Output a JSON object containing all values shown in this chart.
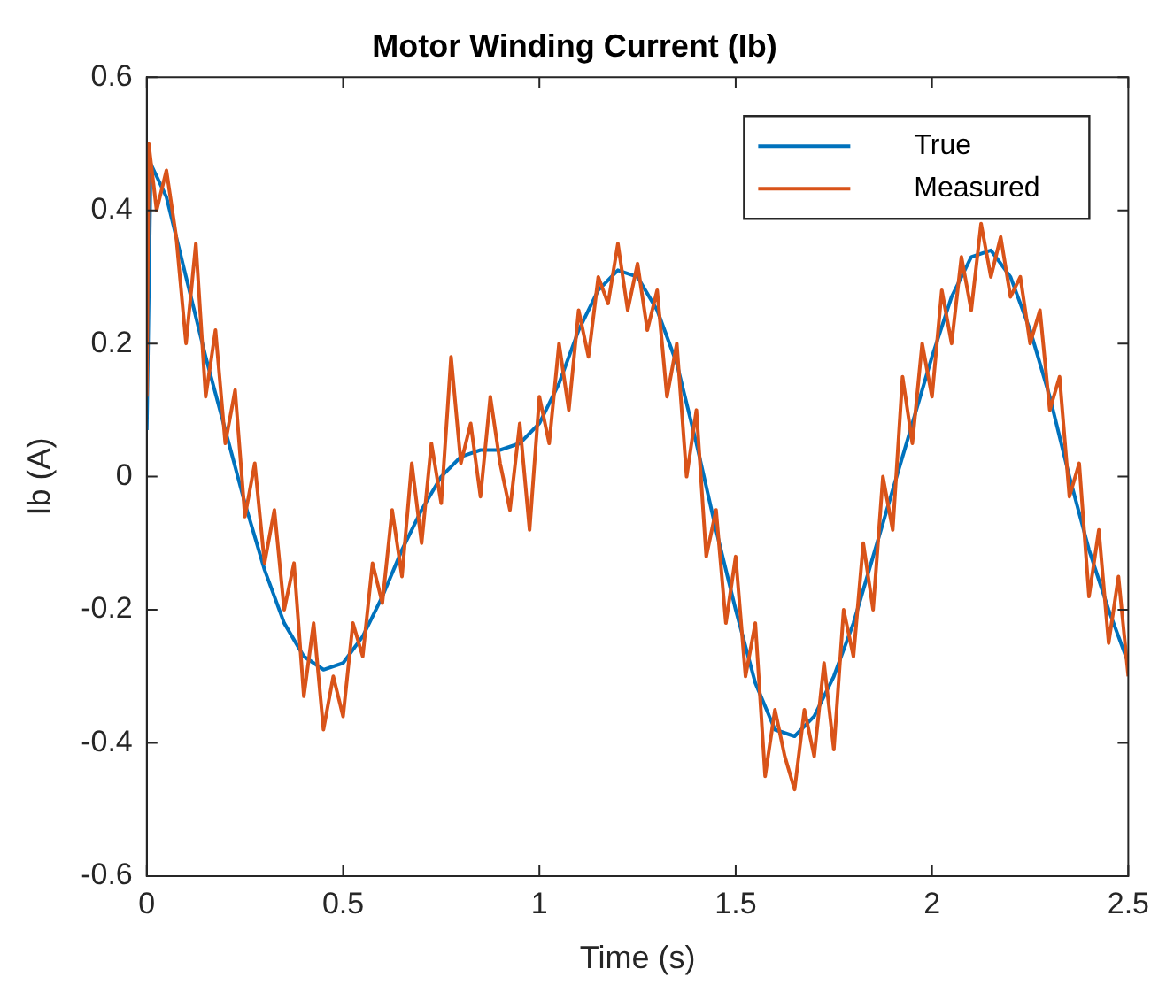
{
  "chart_data": {
    "type": "line",
    "title": "Motor Winding Current (Ib)",
    "xlabel": "Time (s)",
    "ylabel": "Ib (A)",
    "xlim": [
      0,
      2.5
    ],
    "ylim": [
      -0.6,
      0.6
    ],
    "xticks": [
      0,
      0.5,
      1,
      1.5,
      2,
      2.5
    ],
    "yticks": [
      0.6,
      0.4,
      0.2,
      0,
      -0.2,
      -0.4,
      -0.6
    ],
    "legend": "top right",
    "grid": false,
    "series": [
      {
        "name": "True",
        "color": "#0072bd",
        "x": [
          0,
          0.01,
          0.05,
          0.1,
          0.15,
          0.2,
          0.25,
          0.3,
          0.35,
          0.4,
          0.45,
          0.5,
          0.55,
          0.6,
          0.65,
          0.7,
          0.75,
          0.8,
          0.85,
          0.9,
          0.95,
          1,
          1.05,
          1.1,
          1.15,
          1.2,
          1.25,
          1.3,
          1.35,
          1.4,
          1.45,
          1.5,
          1.55,
          1.6,
          1.65,
          1.7,
          1.75,
          1.8,
          1.85,
          1.9,
          1.95,
          2,
          2.05,
          2.1,
          2.15,
          2.2,
          2.25,
          2.3,
          2.35,
          2.4,
          2.45,
          2.5
        ],
        "values": [
          0.07,
          0.47,
          0.42,
          0.3,
          0.18,
          0.07,
          -0.04,
          -0.14,
          -0.22,
          -0.27,
          -0.29,
          -0.28,
          -0.24,
          -0.18,
          -0.11,
          -0.05,
          0,
          0.03,
          0.04,
          0.04,
          0.05,
          0.08,
          0.14,
          0.22,
          0.28,
          0.31,
          0.3,
          0.25,
          0.17,
          0.05,
          -0.08,
          -0.2,
          -0.31,
          -0.38,
          -0.39,
          -0.36,
          -0.3,
          -0.22,
          -0.12,
          -0.02,
          0.08,
          0.18,
          0.27,
          0.33,
          0.34,
          0.3,
          0.22,
          0.12,
          0,
          -0.11,
          -0.2,
          -0.28
        ]
      },
      {
        "name": "Measured",
        "color": "#d95319",
        "x": [
          0,
          0.005,
          0.025,
          0.05,
          0.075,
          0.1,
          0.125,
          0.15,
          0.175,
          0.2,
          0.225,
          0.25,
          0.275,
          0.3,
          0.325,
          0.35,
          0.375,
          0.4,
          0.425,
          0.45,
          0.475,
          0.5,
          0.525,
          0.55,
          0.575,
          0.6,
          0.625,
          0.65,
          0.675,
          0.7,
          0.725,
          0.75,
          0.775,
          0.8,
          0.825,
          0.85,
          0.875,
          0.9,
          0.925,
          0.95,
          0.975,
          1,
          1.025,
          1.05,
          1.075,
          1.1,
          1.125,
          1.15,
          1.175,
          1.2,
          1.225,
          1.25,
          1.275,
          1.3,
          1.325,
          1.35,
          1.375,
          1.4,
          1.425,
          1.45,
          1.475,
          1.5,
          1.525,
          1.55,
          1.575,
          1.6,
          1.625,
          1.65,
          1.675,
          1.7,
          1.725,
          1.75,
          1.775,
          1.8,
          1.825,
          1.85,
          1.875,
          1.9,
          1.925,
          1.95,
          1.975,
          2,
          2.025,
          2.05,
          2.075,
          2.1,
          2.125,
          2.15,
          2.175,
          2.2,
          2.225,
          2.25,
          2.275,
          2.3,
          2.325,
          2.35,
          2.375,
          2.4,
          2.425,
          2.45,
          2.475,
          2.5
        ],
        "values": [
          0.12,
          0.5,
          0.4,
          0.46,
          0.36,
          0.2,
          0.35,
          0.12,
          0.22,
          0.05,
          0.13,
          -0.06,
          0.02,
          -0.13,
          -0.05,
          -0.2,
          -0.13,
          -0.33,
          -0.22,
          -0.38,
          -0.3,
          -0.36,
          -0.22,
          -0.27,
          -0.13,
          -0.19,
          -0.05,
          -0.15,
          0.02,
          -0.1,
          0.05,
          -0.04,
          0.18,
          0.02,
          0.08,
          -0.03,
          0.12,
          0.02,
          -0.05,
          0.08,
          -0.08,
          0.12,
          0.05,
          0.2,
          0.1,
          0.25,
          0.18,
          0.3,
          0.26,
          0.35,
          0.25,
          0.32,
          0.22,
          0.28,
          0.12,
          0.2,
          0.0,
          0.1,
          -0.12,
          -0.05,
          -0.22,
          -0.12,
          -0.3,
          -0.22,
          -0.45,
          -0.35,
          -0.42,
          -0.47,
          -0.35,
          -0.42,
          -0.28,
          -0.41,
          -0.2,
          -0.27,
          -0.1,
          -0.2,
          0.0,
          -0.08,
          0.15,
          0.05,
          0.2,
          0.12,
          0.28,
          0.2,
          0.33,
          0.25,
          0.38,
          0.3,
          0.36,
          0.27,
          0.3,
          0.2,
          0.25,
          0.1,
          0.15,
          -0.03,
          0.02,
          -0.18,
          -0.08,
          -0.25,
          -0.15,
          -0.3
        ]
      }
    ]
  }
}
